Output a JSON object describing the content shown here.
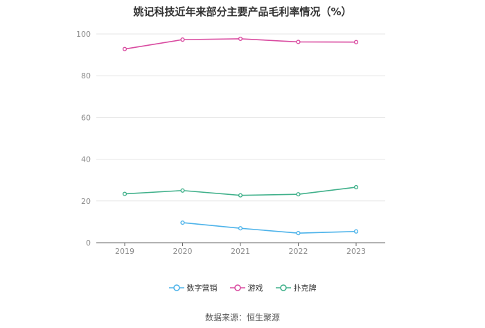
{
  "chart_data": {
    "type": "line",
    "title": "姚记科技近年来部分主要产品毛利率情况（%）",
    "categories": [
      "2019",
      "2020",
      "2021",
      "2022",
      "2023"
    ],
    "ylim": [
      0,
      100
    ],
    "yticks": [
      "0",
      "20",
      "40",
      "60",
      "80",
      "100"
    ],
    "grid": true,
    "legend_position": "bottom",
    "series": [
      {
        "name": "数字营销",
        "color": "#4db3ea",
        "values": [
          null,
          9.6,
          6.9,
          4.6,
          5.4
        ]
      },
      {
        "name": "游戏",
        "color": "#d94aa0",
        "values": [
          92.8,
          97.3,
          97.7,
          96.2,
          96.1
        ]
      },
      {
        "name": "扑克牌",
        "color": "#3fb08a",
        "values": [
          23.4,
          25.0,
          22.7,
          23.2,
          26.6
        ]
      }
    ]
  },
  "source": "数据来源：恒生聚源"
}
